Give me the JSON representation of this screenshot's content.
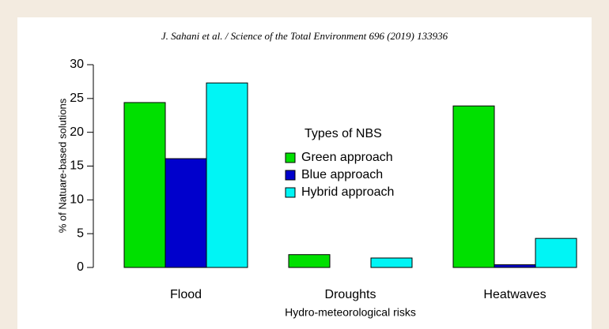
{
  "chart_data": {
    "type": "bar",
    "header": "J. Sahani et al. / Science of the Total Environment 696 (2019) 133936",
    "ylabel": "% of Natuare-based solutions",
    "xlabel": "Hydro-meteorological risks",
    "legend_title": "Types of NBS",
    "categories": [
      "Flood",
      "Droughts",
      "Heatwaves"
    ],
    "series": [
      {
        "name": "Green approach",
        "color": "#00e000",
        "values": [
          24.4,
          1.9,
          23.9
        ]
      },
      {
        "name": "Blue approach",
        "color": "#0000cc",
        "values": [
          16.1,
          0,
          0.4
        ]
      },
      {
        "name": "Hybrid approach",
        "color": "#00f5f5",
        "values": [
          27.3,
          1.4,
          4.3
        ]
      }
    ],
    "ylim": [
      0,
      30
    ],
    "yticks": [
      0,
      5,
      10,
      15,
      20,
      25,
      30
    ]
  }
}
